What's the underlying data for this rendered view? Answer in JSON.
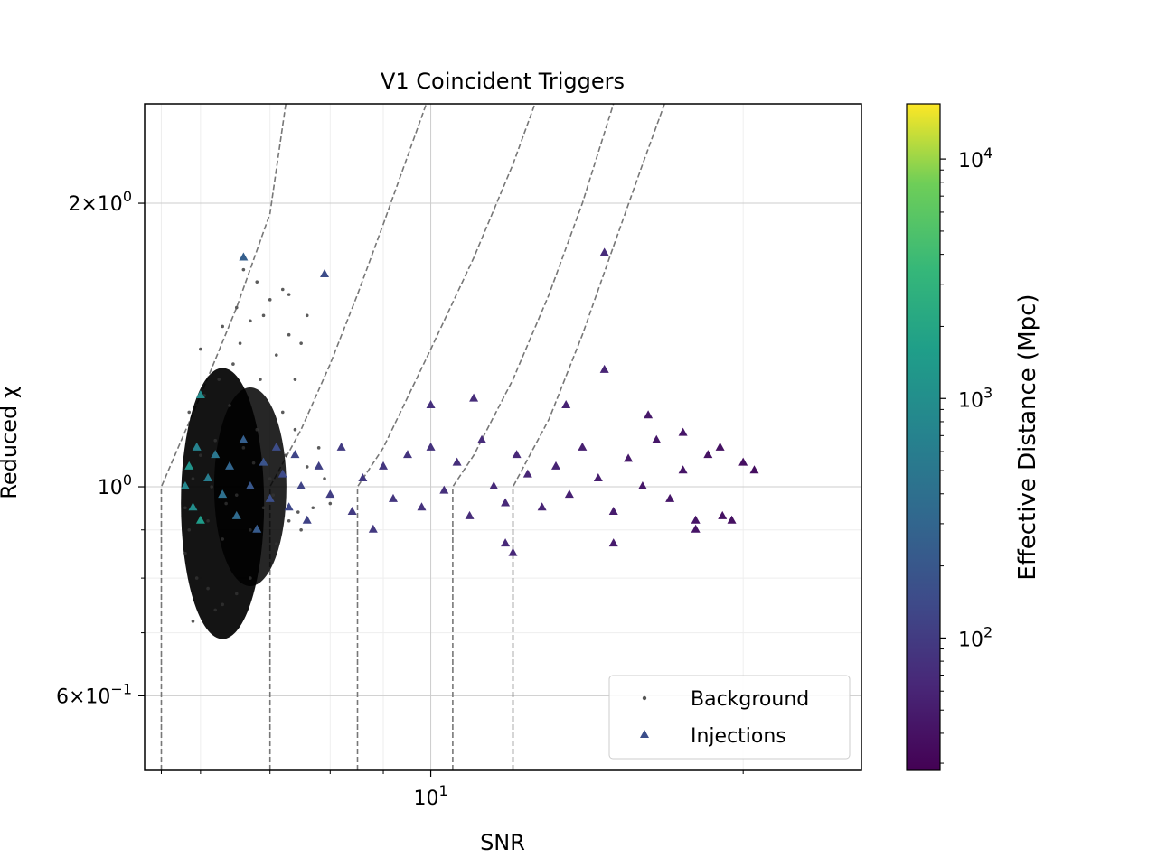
{
  "chart_data": {
    "type": "scatter",
    "title": "V1 Coincident Triggers",
    "xlabel": "SNR",
    "ylabel": "Reduced χ",
    "x_scale": "log",
    "y_scale": "log",
    "xlim": [
      5.3,
      26.0
    ],
    "ylim": [
      0.5,
      2.55
    ],
    "x_ticks": [
      {
        "value": 10,
        "base": "10",
        "exp": "1"
      }
    ],
    "x_minor_ticks": [
      5.5,
      6,
      7,
      8,
      9,
      20
    ],
    "y_ticks": [
      {
        "value": 1,
        "mant": "",
        "base": "10",
        "exp": "0"
      },
      {
        "value": 2,
        "mant": "2×",
        "base": "10",
        "exp": "0"
      },
      {
        "value": 0.6,
        "mant": "6×",
        "base": "10",
        "exp": "−1"
      }
    ],
    "y_minor_ticks": [
      0.7,
      0.8,
      0.9,
      3
    ],
    "grid": true,
    "legend": {
      "location": "lower right",
      "entries": [
        {
          "label": "Background",
          "marker": "dot",
          "color": "#555555"
        },
        {
          "label": "Injections",
          "marker": "triangle",
          "color": "#3b4d8a"
        }
      ]
    },
    "colorbar": {
      "label": "Effective Distance (Mpc)",
      "scale": "log",
      "range": [
        28,
        17000
      ],
      "ticks": [
        {
          "value": 100,
          "label": "10",
          "exp": "2"
        },
        {
          "value": 1000,
          "label": "10",
          "exp": "3"
        },
        {
          "value": 10000,
          "label": "10",
          "exp": "4"
        }
      ],
      "colormap": "viridis"
    },
    "contours": [
      {
        "snr_floor": 5.5,
        "points": [
          [
            5.5,
            1.0
          ],
          [
            6.0,
            1.25
          ],
          [
            6.5,
            1.55
          ],
          [
            7.0,
            1.95
          ],
          [
            7.25,
            2.55
          ]
        ]
      },
      {
        "snr_floor": 7.0,
        "points": [
          [
            7.0,
            1.0
          ],
          [
            7.5,
            1.15
          ],
          [
            8.0,
            1.35
          ],
          [
            8.5,
            1.6
          ],
          [
            9.0,
            1.9
          ],
          [
            9.9,
            2.55
          ]
        ]
      },
      {
        "snr_floor": 8.5,
        "points": [
          [
            8.5,
            1.0
          ],
          [
            9.0,
            1.1
          ],
          [
            10.0,
            1.4
          ],
          [
            11.0,
            1.75
          ],
          [
            12.0,
            2.2
          ],
          [
            12.6,
            2.55
          ]
        ]
      },
      {
        "snr_floor": 10.5,
        "points": [
          [
            10.5,
            1.0
          ],
          [
            11.0,
            1.08
          ],
          [
            12.0,
            1.3
          ],
          [
            13.0,
            1.6
          ],
          [
            14.0,
            2.0
          ],
          [
            15.0,
            2.55
          ]
        ]
      },
      {
        "snr_floor": 12.0,
        "points": [
          [
            12.0,
            1.0
          ],
          [
            13.0,
            1.18
          ],
          [
            14.0,
            1.45
          ],
          [
            15.0,
            1.8
          ],
          [
            16.0,
            2.2
          ],
          [
            16.8,
            2.55
          ]
        ]
      }
    ],
    "series": [
      {
        "name": "Background",
        "marker": "dot",
        "color": "#333333",
        "points": [
          [
            5.8,
            0.95
          ],
          [
            5.9,
            1.02
          ],
          [
            6.0,
            1.08
          ],
          [
            6.1,
            0.92
          ],
          [
            6.2,
            1.12
          ],
          [
            6.3,
            0.88
          ],
          [
            6.4,
            1.05
          ],
          [
            6.5,
            0.98
          ],
          [
            6.6,
            1.1
          ],
          [
            6.7,
            0.9
          ],
          [
            6.8,
            1.15
          ],
          [
            6.9,
            0.95
          ],
          [
            7.0,
            1.02
          ],
          [
            7.1,
            0.87
          ],
          [
            5.85,
            1.2
          ],
          [
            6.05,
            1.25
          ],
          [
            6.25,
            1.3
          ],
          [
            6.45,
            1.35
          ],
          [
            6.55,
            1.42
          ],
          [
            6.3,
            1.48
          ],
          [
            6.7,
            1.5
          ],
          [
            6.9,
            1.52
          ],
          [
            7.0,
            1.58
          ],
          [
            7.2,
            1.62
          ],
          [
            7.3,
            1.6
          ],
          [
            6.5,
            1.55
          ],
          [
            6.6,
            1.7
          ],
          [
            6.8,
            1.65
          ],
          [
            5.8,
            0.85
          ],
          [
            5.95,
            0.8
          ],
          [
            6.1,
            0.78
          ],
          [
            6.3,
            0.75
          ],
          [
            6.5,
            0.77
          ],
          [
            6.7,
            0.8
          ],
          [
            5.9,
            0.72
          ],
          [
            6.2,
            0.74
          ],
          [
            7.3,
            0.92
          ],
          [
            7.5,
            0.9
          ],
          [
            7.7,
            0.95
          ],
          [
            7.6,
            1.05
          ],
          [
            7.4,
            1.15
          ],
          [
            7.2,
            1.2
          ],
          [
            7.8,
            1.1
          ],
          [
            7.9,
            1.02
          ],
          [
            8.0,
            0.96
          ],
          [
            6.0,
            1.4
          ],
          [
            6.4,
            1.22
          ],
          [
            6.85,
            1.3
          ],
          [
            7.1,
            1.38
          ],
          [
            7.3,
            1.45
          ],
          [
            7.5,
            1.42
          ],
          [
            7.6,
            1.52
          ],
          [
            7.4,
            1.3
          ],
          [
            5.85,
            0.9
          ],
          [
            6.15,
            1.0
          ],
          [
            6.35,
            0.96
          ],
          [
            6.75,
            1.06
          ],
          [
            7.05,
            0.98
          ],
          [
            7.25,
            1.08
          ],
          [
            7.45,
            0.94
          ]
        ]
      },
      {
        "name": "Injections",
        "marker": "triangle",
        "points": [
          [
            5.8,
            1.0,
            800
          ],
          [
            5.85,
            1.05,
            1200
          ],
          [
            5.9,
            0.95,
            1000
          ],
          [
            5.95,
            1.1,
            700
          ],
          [
            6.0,
            0.92,
            1500
          ],
          [
            6.1,
            1.02,
            600
          ],
          [
            6.0,
            1.25,
            900
          ],
          [
            6.2,
            1.08,
            500
          ],
          [
            6.3,
            0.98,
            400
          ],
          [
            6.4,
            1.05,
            300
          ],
          [
            6.5,
            0.93,
            350
          ],
          [
            6.6,
            1.12,
            250
          ],
          [
            6.7,
            1.0,
            200
          ],
          [
            6.8,
            0.9,
            220
          ],
          [
            6.9,
            1.06,
            180
          ],
          [
            7.0,
            0.97,
            160
          ],
          [
            7.1,
            1.1,
            150
          ],
          [
            7.2,
            1.03,
            140
          ],
          [
            7.3,
            0.95,
            130
          ],
          [
            7.4,
            1.08,
            125
          ],
          [
            7.5,
            1.0,
            120
          ],
          [
            7.6,
            0.92,
            115
          ],
          [
            7.8,
            1.05,
            110
          ],
          [
            8.0,
            0.98,
            105
          ],
          [
            8.2,
            1.1,
            100
          ],
          [
            8.4,
            0.94,
            98
          ],
          [
            8.6,
            1.02,
            95
          ],
          [
            8.8,
            0.9,
            92
          ],
          [
            9.0,
            1.05,
            90
          ],
          [
            9.2,
            0.97,
            88
          ],
          [
            9.5,
            1.08,
            85
          ],
          [
            9.8,
            0.95,
            82
          ],
          [
            10.0,
            1.1,
            80
          ],
          [
            10.3,
            0.99,
            78
          ],
          [
            10.6,
            1.06,
            75
          ],
          [
            10.9,
            0.93,
            72
          ],
          [
            11.2,
            1.12,
            70
          ],
          [
            11.5,
            1.0,
            68
          ],
          [
            11.8,
            0.96,
            66
          ],
          [
            12.1,
            1.08,
            64
          ],
          [
            12.4,
            1.03,
            62
          ],
          [
            12.8,
            0.95,
            60
          ],
          [
            13.2,
            1.05,
            58
          ],
          [
            13.6,
            0.98,
            56
          ],
          [
            14.0,
            1.1,
            54
          ],
          [
            14.5,
            1.02,
            52
          ],
          [
            15.0,
            0.94,
            50
          ],
          [
            15.5,
            1.07,
            48
          ],
          [
            16.0,
            1.0,
            46
          ],
          [
            16.5,
            1.12,
            45
          ],
          [
            17.0,
            0.97,
            44
          ],
          [
            17.5,
            1.04,
            43
          ],
          [
            18.0,
            0.9,
            42
          ],
          [
            18.5,
            1.08,
            41
          ],
          [
            19.0,
            1.1,
            40
          ],
          [
            19.5,
            0.92,
            39
          ],
          [
            20.0,
            1.06,
            38
          ],
          [
            20.5,
            1.04,
            37
          ],
          [
            6.6,
            1.75,
            250
          ],
          [
            7.9,
            1.68,
            150
          ],
          [
            14.7,
            1.77,
            70
          ],
          [
            14.7,
            1.33,
            60
          ],
          [
            10.0,
            1.22,
            78
          ],
          [
            11.0,
            1.24,
            72
          ],
          [
            13.5,
            1.22,
            58
          ],
          [
            16.2,
            1.19,
            46
          ],
          [
            17.5,
            1.14,
            44
          ],
          [
            18.0,
            0.92,
            42
          ],
          [
            11.8,
            0.87,
            66
          ],
          [
            12.0,
            0.85,
            65
          ],
          [
            19.1,
            0.93,
            40
          ],
          [
            15.0,
            0.87,
            50
          ]
        ]
      }
    ]
  }
}
